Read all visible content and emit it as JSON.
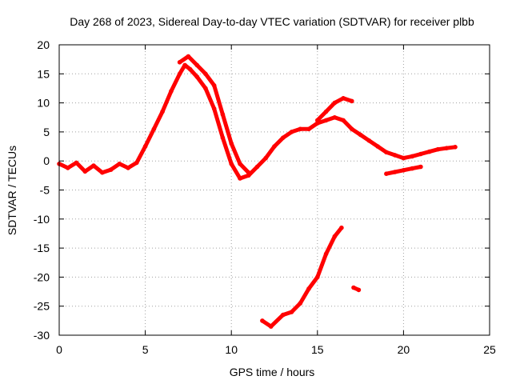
{
  "chart_data": {
    "type": "scatter",
    "title": "Day 268 of 2023, Sidereal Day-to-day VTEC variation (SDTVAR) for receiver plbb",
    "xlabel": "GPS time / hours",
    "ylabel": "SDTVAR / TECUs",
    "xlim": [
      0,
      25
    ],
    "ylim": [
      -30,
      20
    ],
    "xticks": [
      0,
      5,
      10,
      15,
      20,
      25
    ],
    "yticks": [
      -30,
      -25,
      -20,
      -15,
      -10,
      -5,
      0,
      5,
      10,
      15,
      20
    ],
    "grid": true,
    "series_color": "#ff0000",
    "series": [
      {
        "name": "sdtvar-main-track",
        "x": [
          0.0,
          0.5,
          1.0,
          1.5,
          2.0,
          2.5,
          3.0,
          3.5,
          4.0,
          4.5,
          5.0,
          5.5,
          6.0,
          6.5,
          7.0,
          7.3,
          7.6,
          8.0,
          8.5,
          9.0,
          9.5,
          10.0,
          10.5,
          11.0,
          11.5,
          12.0,
          12.5,
          13.0,
          13.5,
          14.0,
          14.5,
          15.0,
          15.5,
          16.0,
          16.5,
          17.0,
          17.5,
          18.0,
          18.5,
          19.0,
          19.5,
          20.0,
          20.5,
          21.0,
          21.5,
          22.0,
          22.5,
          23.0
        ],
        "y": [
          -0.5,
          -1.2,
          -0.3,
          -1.8,
          -0.8,
          -2.0,
          -1.5,
          -0.5,
          -1.2,
          -0.3,
          2.5,
          5.5,
          8.5,
          12.0,
          15.0,
          16.5,
          15.8,
          14.5,
          12.5,
          9.0,
          4.0,
          -0.5,
          -3.0,
          -2.5,
          -1.0,
          0.5,
          2.5,
          4.0,
          5.0,
          5.5,
          5.5,
          6.5,
          7.0,
          7.5,
          7.0,
          5.5,
          4.5,
          3.5,
          2.5,
          1.5,
          1.0,
          0.5,
          0.8,
          1.2,
          1.6,
          2.0,
          2.2,
          2.4
        ]
      },
      {
        "name": "sdtvar-upper-branch",
        "x": [
          7.0,
          7.5,
          8.0,
          8.5,
          9.0,
          9.5,
          10.0,
          10.5,
          11.0
        ],
        "y": [
          17.0,
          18.0,
          16.5,
          15.0,
          13.0,
          8.0,
          3.0,
          -0.5,
          -2.0
        ]
      },
      {
        "name": "sdtvar-secondary-peak",
        "x": [
          15.0,
          15.5,
          16.0,
          16.5,
          17.0
        ],
        "y": [
          7.0,
          8.5,
          10.0,
          10.8,
          10.3
        ]
      },
      {
        "name": "sdtvar-lower-segment",
        "x": [
          19.0,
          19.5,
          20.0,
          20.5,
          21.0
        ],
        "y": [
          -2.2,
          -1.9,
          -1.6,
          -1.3,
          -1.0
        ]
      },
      {
        "name": "sdtvar-negative-branch",
        "x": [
          11.8,
          12.3,
          13.0,
          13.5,
          14.0,
          14.5,
          15.0,
          15.5,
          16.0,
          16.4
        ],
        "y": [
          -27.5,
          -28.5,
          -26.5,
          -26.0,
          -24.5,
          -22.0,
          -20.0,
          -16.0,
          -13.0,
          -11.5
        ]
      },
      {
        "name": "sdtvar-isolated-point",
        "x": [
          17.1,
          17.4
        ],
        "y": [
          -21.8,
          -22.2
        ]
      }
    ]
  }
}
